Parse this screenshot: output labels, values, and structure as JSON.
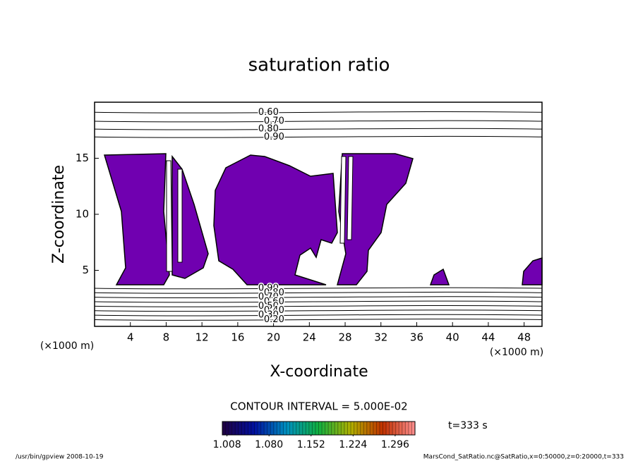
{
  "chart_data": {
    "type": "contour",
    "title": "saturation ratio",
    "x_label": "X-coordinate",
    "y_label": "Z-coordinate",
    "x_unit": "(×1000 m)",
    "y_unit": "(×1000 m)",
    "xlim": [
      0,
      50
    ],
    "ylim": [
      0,
      20
    ],
    "xticks": [
      4,
      8,
      12,
      16,
      20,
      24,
      28,
      32,
      36,
      40,
      44,
      48
    ],
    "yticks": [
      5,
      10,
      15
    ],
    "contours": [
      {
        "level": {
          "value": 0.6,
          "label": "0.60"
        },
        "z": 19.1
      },
      {
        "level": {
          "value": 0.7,
          "label": "0.70"
        },
        "z": 18.3
      },
      {
        "level": {
          "value": 0.8,
          "label": "0.80"
        },
        "z": 17.6
      },
      {
        "level": {
          "value": 0.9,
          "label": "0.90"
        },
        "z": 16.9
      },
      {
        "level": {
          "value": 0.9,
          "label": "0.90"
        },
        "z": 3.4
      },
      {
        "level": {
          "value": 0.8,
          "label": "0.80"
        },
        "z": 3.0
      },
      {
        "level": {
          "value": 0.7,
          "label": "0.70"
        },
        "z": 2.6
      },
      {
        "level": {
          "value": 0.6,
          "label": "0.60"
        },
        "z": 2.2
      },
      {
        "level": {
          "value": 0.5,
          "label": "0.50"
        },
        "z": 1.8
      },
      {
        "level": {
          "value": 0.4,
          "label": "0.40"
        },
        "z": 1.4
      },
      {
        "level": {
          "value": 0.3,
          "label": "0.30"
        },
        "z": 1.0
      },
      {
        "level": {
          "value": 0.2,
          "label": "0.20"
        },
        "z": 0.6
      }
    ],
    "fill_color": "#7000b0",
    "contour_interval": "CONTOUR INTERVAL = 5.000E-02",
    "time_label": "t=333 s",
    "colorbar": {
      "clim": [
        1.0,
        1.33
      ],
      "colors": [
        "#200040",
        "#0010a0",
        "#0090c0",
        "#10b040",
        "#b0b000",
        "#c03000",
        "#ff9090"
      ],
      "ticks": [
        1.008,
        {
          "value": 1.08,
          "label": "1.080"
        },
        1.152,
        1.224,
        1.296
      ]
    },
    "footer_left": "/usr/bin/gpview  2008-10-19",
    "footer_right": "MarsCond_SatRatio.nc@SatRatio,x=0:50000,z=0:20000,t=333"
  }
}
